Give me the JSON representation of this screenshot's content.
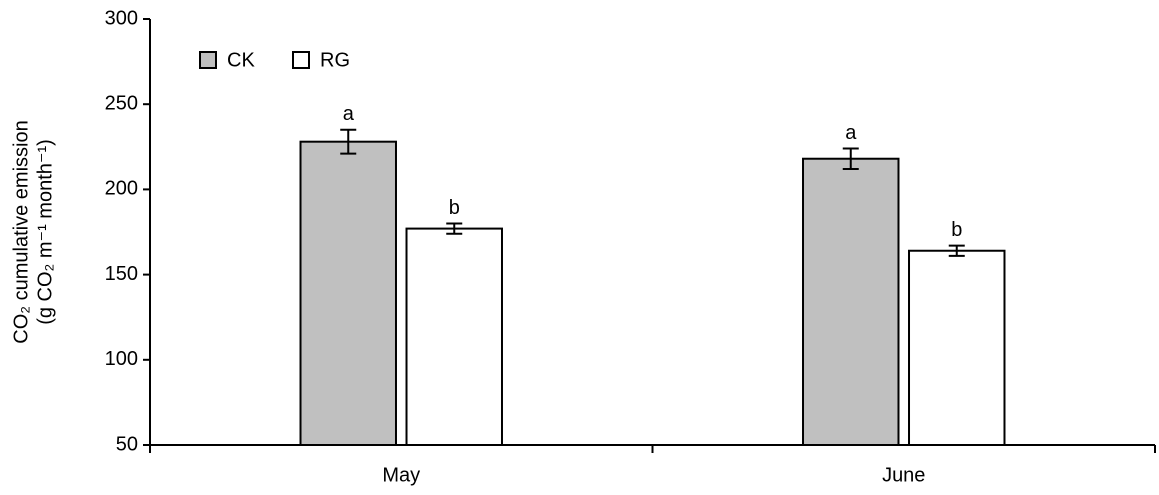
{
  "chart_data": {
    "type": "bar",
    "y_label": [
      "CO₂ cumulative emission",
      "(g CO₂ m⁻¹ month⁻¹)"
    ],
    "categories": [
      "May",
      "June"
    ],
    "series": [
      {
        "name": "CK",
        "color": "#c0c0c0",
        "values": [
          228,
          218
        ],
        "errors": [
          7,
          6
        ],
        "letters": [
          "a",
          "a"
        ]
      },
      {
        "name": "RG",
        "color": "#ffffff",
        "values": [
          177,
          164
        ],
        "errors": [
          3,
          3
        ],
        "letters": [
          "b",
          "b"
        ]
      }
    ],
    "ylim": [
      50,
      300
    ],
    "yticks": [
      50,
      100,
      150,
      200,
      250,
      300
    ],
    "legend": "upper left"
  }
}
